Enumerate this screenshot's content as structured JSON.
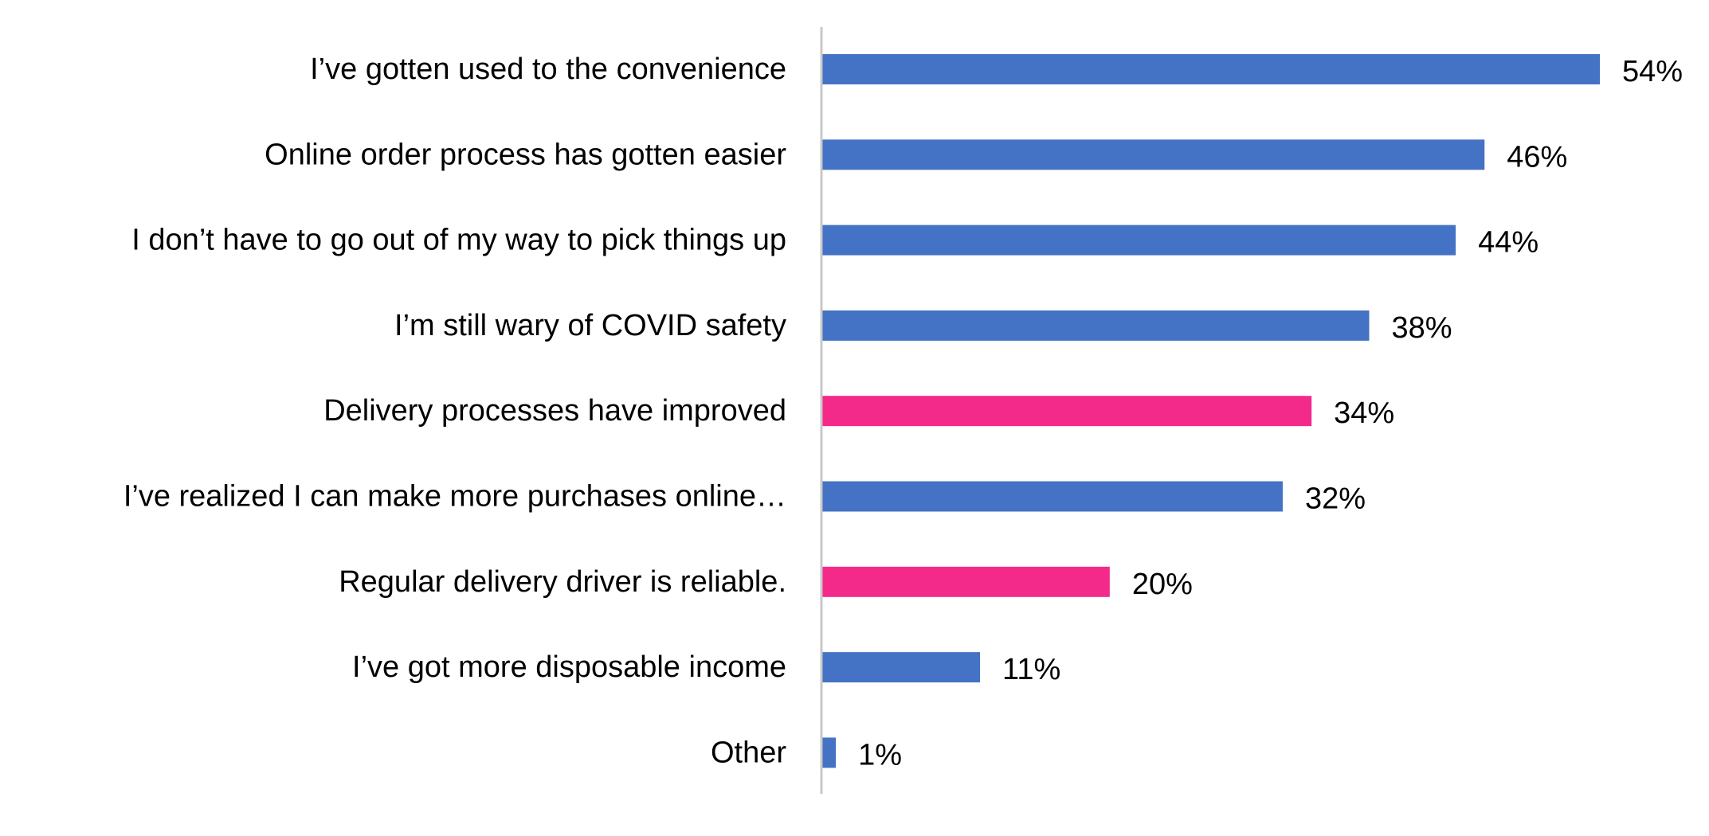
{
  "chart_data": {
    "type": "bar",
    "orientation": "horizontal",
    "categories": [
      "I’ve gotten used to the convenience",
      "Online order process has gotten easier",
      "I don’t have to go out of my way to pick things up",
      "I’m still wary of COVID safety",
      "Delivery processes have improved",
      "I’ve realized I can make more purchases online…",
      "Regular delivery driver is reliable.",
      "I’ve got more disposable income",
      "Other"
    ],
    "values": [
      54,
      46,
      44,
      38,
      34,
      32,
      20,
      11,
      1
    ],
    "value_labels": [
      "54%",
      "46%",
      "44%",
      "38%",
      "34%",
      "32%",
      "20%",
      "11%",
      "1%"
    ],
    "bar_colors": [
      "#4472C4",
      "#4472C4",
      "#4472C4",
      "#4472C4",
      "#F42A8B",
      "#4472C4",
      "#F42A8B",
      "#4472C4",
      "#4472C4"
    ],
    "xlim": [
      0,
      54
    ],
    "grid": false,
    "legend": "none",
    "title": "",
    "xlabel": "",
    "ylabel": ""
  }
}
